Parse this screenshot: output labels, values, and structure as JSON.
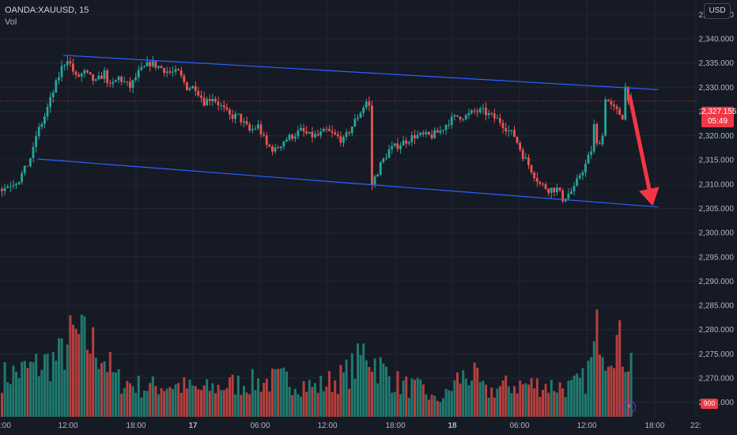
{
  "legend": {
    "symbol": "OANDA:XAUUSD, 15",
    "volume_label": "Vol"
  },
  "currency_button": "USD",
  "price_tag": {
    "price": "2,327.155",
    "countdown": "05:49"
  },
  "volume_tag": "900",
  "colors": {
    "up": "#26a69a",
    "down": "#ef5350",
    "up_vol": "#1f7a6f",
    "down_vol": "#b5403e",
    "channel": "#2962ff",
    "arrow": "#f23645",
    "grid": "#232632",
    "axis_text": "#b2b5be"
  },
  "chart_data": {
    "type": "candlestick",
    "y_ticks": [
      "2,345.000",
      "2,340.000",
      "2,335.000",
      "2,330.000",
      "2,325.000",
      "2,320.000",
      "2,315.000",
      "2,310.000",
      "2,305.000",
      "2,300.000",
      "2,295.000",
      "2,290.000",
      "2,285.000",
      "2,280.000",
      "2,275.000",
      "2,270.000",
      "2,265.000"
    ],
    "ylim": [
      2262,
      2348
    ],
    "x_ticks": [
      "12:00",
      "18:00",
      "17",
      "06:00",
      "12:00",
      "18:00",
      "18",
      "06:00",
      "12:00",
      "18:00",
      "22:"
    ],
    "x_ticks_partial_left": ":00",
    "price_path": [
      [
        0,
        2309
      ],
      [
        3,
        2310
      ],
      [
        6,
        2311
      ],
      [
        9,
        2314
      ],
      [
        11,
        2317
      ],
      [
        12,
        2320
      ],
      [
        15,
        2324
      ],
      [
        18,
        2329
      ],
      [
        21,
        2334
      ],
      [
        23,
        2336
      ],
      [
        26,
        2332
      ],
      [
        29,
        2333
      ],
      [
        33,
        2331
      ],
      [
        36,
        2333
      ],
      [
        38,
        2330
      ],
      [
        41,
        2332
      ],
      [
        45,
        2330
      ],
      [
        48,
        2333
      ],
      [
        52,
        2335
      ],
      [
        56,
        2334
      ],
      [
        59,
        2333
      ],
      [
        62,
        2333
      ],
      [
        65,
        2330
      ],
      [
        68,
        2330
      ],
      [
        71,
        2327
      ],
      [
        74,
        2328
      ],
      [
        77,
        2326
      ],
      [
        80,
        2324
      ],
      [
        83,
        2324
      ],
      [
        87,
        2321
      ],
      [
        90,
        2322
      ],
      [
        93,
        2318
      ],
      [
        96,
        2317
      ],
      [
        99,
        2319
      ],
      [
        102,
        2320
      ],
      [
        105,
        2321
      ],
      [
        108,
        2320
      ],
      [
        111,
        2320
      ],
      [
        114,
        2321
      ],
      [
        117,
        2320
      ],
      [
        120,
        2319
      ],
      [
        123,
        2322
      ],
      [
        126,
        2325
      ],
      [
        128,
        2327
      ],
      [
        129,
        2326
      ],
      [
        130,
        2310
      ],
      [
        133,
        2314
      ],
      [
        136,
        2317
      ],
      [
        139,
        2318
      ],
      [
        142,
        2319
      ],
      [
        145,
        2320
      ],
      [
        148,
        2320
      ],
      [
        151,
        2320
      ],
      [
        154,
        2321
      ],
      [
        157,
        2323
      ],
      [
        160,
        2324
      ],
      [
        163,
        2324
      ],
      [
        166,
        2325
      ],
      [
        169,
        2325
      ],
      [
        172,
        2324
      ],
      [
        175,
        2323
      ],
      [
        178,
        2321
      ],
      [
        180,
        2320
      ],
      [
        183,
        2316
      ],
      [
        186,
        2313
      ],
      [
        189,
        2310
      ],
      [
        192,
        2309
      ],
      [
        195,
        2309
      ],
      [
        197,
        2307
      ],
      [
        199,
        2308
      ],
      [
        201,
        2309
      ],
      [
        203,
        2312
      ],
      [
        205,
        2314
      ],
      [
        207,
        2317
      ],
      [
        208,
        2322
      ],
      [
        209,
        2318
      ],
      [
        211,
        2320
      ],
      [
        212,
        2328
      ],
      [
        214,
        2326
      ],
      [
        216,
        2325
      ],
      [
        218,
        2324
      ],
      [
        219,
        2330
      ],
      [
        220,
        2328
      ],
      [
        221,
        2327
      ]
    ],
    "volume_path": [
      [
        0,
        15
      ],
      [
        10,
        18
      ],
      [
        20,
        22
      ],
      [
        25,
        30
      ],
      [
        30,
        28
      ],
      [
        35,
        24
      ],
      [
        40,
        14
      ],
      [
        50,
        11
      ],
      [
        60,
        12
      ],
      [
        70,
        10
      ],
      [
        80,
        12
      ],
      [
        90,
        13
      ],
      [
        100,
        14
      ],
      [
        110,
        11
      ],
      [
        115,
        13
      ],
      [
        120,
        15
      ],
      [
        125,
        20
      ],
      [
        128,
        26
      ],
      [
        130,
        22
      ],
      [
        135,
        16
      ],
      [
        140,
        12
      ],
      [
        148,
        10
      ],
      [
        152,
        6
      ],
      [
        156,
        8
      ],
      [
        160,
        14
      ],
      [
        165,
        16
      ],
      [
        170,
        9
      ],
      [
        175,
        11
      ],
      [
        180,
        12
      ],
      [
        190,
        12
      ],
      [
        200,
        11
      ],
      [
        205,
        14
      ],
      [
        208,
        24
      ],
      [
        210,
        37
      ],
      [
        212,
        26
      ],
      [
        215,
        30
      ],
      [
        218,
        25
      ],
      [
        221,
        21
      ]
    ],
    "volume_ylim": [
      0,
      40
    ],
    "channel_upper": {
      "from": {
        "bar": 22,
        "price": 2336.6
      },
      "to": {
        "bar": 231,
        "price": 2329.5
      }
    },
    "channel_lower": {
      "from": {
        "bar": 13,
        "price": 2315.2
      },
      "to": {
        "bar": 231,
        "price": 2305.3
      }
    },
    "projection_arrow": {
      "from": {
        "bar": 221,
        "price": 2328
      },
      "to": {
        "bar": 229,
        "price": 2305.5
      }
    },
    "last_price_line": 2327.155,
    "grid": true
  }
}
